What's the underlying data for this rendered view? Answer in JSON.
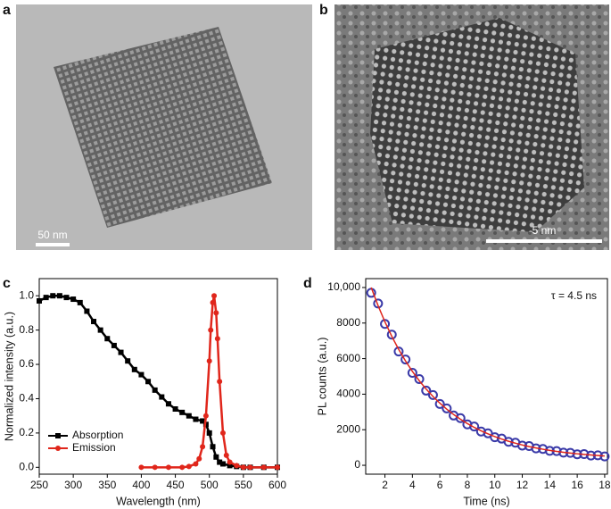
{
  "panels": {
    "a": {
      "label": "a",
      "scale_bar": "50 nm"
    },
    "b": {
      "label": "b",
      "scale_bar": "5 nm"
    }
  },
  "chart_data": [
    {
      "type": "line",
      "panel_label": "c",
      "x_label": "Wavelength (nm)",
      "y_label": "Normalized intensity (a.u.)",
      "xlim": [
        250,
        600
      ],
      "ylim": [
        -0.04,
        1.1
      ],
      "xticks": [
        250,
        300,
        350,
        400,
        450,
        500,
        550,
        600
      ],
      "yticks": [
        {
          "value": 0,
          "label": "0.0"
        },
        0.2,
        0.4,
        0.6,
        0.8,
        {
          "value": 1,
          "label": "1.0"
        }
      ],
      "legend": "lower left",
      "series": [
        {
          "name": "Absorption",
          "color": "#000000",
          "marker": "square",
          "x": [
            250,
            260,
            270,
            280,
            290,
            300,
            310,
            320,
            330,
            340,
            350,
            360,
            370,
            380,
            390,
            400,
            410,
            420,
            430,
            440,
            450,
            460,
            470,
            480,
            490,
            495,
            500,
            505,
            510,
            515,
            520,
            530,
            540,
            550,
            560,
            580,
            600
          ],
          "values": [
            0.97,
            0.99,
            1.0,
            1.0,
            0.99,
            0.98,
            0.96,
            0.91,
            0.85,
            0.8,
            0.75,
            0.71,
            0.67,
            0.62,
            0.57,
            0.54,
            0.5,
            0.45,
            0.41,
            0.37,
            0.34,
            0.32,
            0.3,
            0.28,
            0.27,
            0.25,
            0.2,
            0.12,
            0.06,
            0.03,
            0.02,
            0.01,
            0.005,
            0,
            0,
            0,
            0
          ]
        },
        {
          "name": "Emission",
          "color": "#e0261b",
          "marker": "circle",
          "x": [
            400,
            420,
            440,
            460,
            470,
            480,
            485,
            490,
            495,
            500,
            502,
            505,
            507,
            510,
            512,
            515,
            520,
            525,
            530,
            540,
            550,
            560,
            580,
            600
          ],
          "values": [
            0,
            0,
            0,
            0,
            0.005,
            0.02,
            0.05,
            0.12,
            0.3,
            0.62,
            0.8,
            0.96,
            1.0,
            0.9,
            0.75,
            0.5,
            0.2,
            0.07,
            0.03,
            0.01,
            0,
            0,
            0,
            0
          ]
        }
      ]
    },
    {
      "type": "scatter",
      "panel_label": "d",
      "x_label": "Time (ns)",
      "y_label": "PL counts (a.u.)",
      "annotation": "τ = 4.5 ns",
      "xlim": [
        0.6,
        18.2
      ],
      "ylim": [
        -500,
        10500
      ],
      "xticks": [
        2,
        4,
        6,
        8,
        10,
        12,
        14,
        16,
        18
      ],
      "yticks": [
        0,
        2000,
        4000,
        6000,
        8000,
        {
          "value": 10000,
          "label": "10,000"
        }
      ],
      "x": [
        1,
        1.5,
        2,
        2.5,
        3,
        3.5,
        4,
        4.5,
        5,
        5.5,
        6,
        6.5,
        7,
        7.5,
        8,
        8.5,
        9,
        9.5,
        10,
        10.5,
        11,
        11.5,
        12,
        12.5,
        13,
        13.5,
        14,
        14.5,
        15,
        15.5,
        16,
        16.5,
        17,
        17.5,
        18
      ],
      "series": [
        {
          "color": "#3a3aa8",
          "marker": "circle",
          "values": [
            9700,
            9100,
            7950,
            7350,
            6400,
            5950,
            5200,
            4850,
            4200,
            3950,
            3450,
            3200,
            2800,
            2650,
            2300,
            2180,
            1900,
            1800,
            1580,
            1500,
            1320,
            1270,
            1110,
            1080,
            950,
            920,
            810,
            800,
            710,
            700,
            620,
            630,
            550,
            560,
            500
          ]
        },
        {
          "color": "#e0261b",
          "marker": "line",
          "values": [
            10000,
            8980,
            8067,
            7250,
            6520,
            5866,
            5280,
            4756,
            4288,
            3869,
            3493,
            3158,
            2857,
            2588,
            2348,
            2132,
            1939,
            1767,
            1613,
            1475,
            1351,
            1243,
            1142,
            1053,
            974,
            903,
            839,
            783,
            733,
            687,
            646,
            609,
            577,
            548,
            522
          ]
        }
      ]
    }
  ]
}
